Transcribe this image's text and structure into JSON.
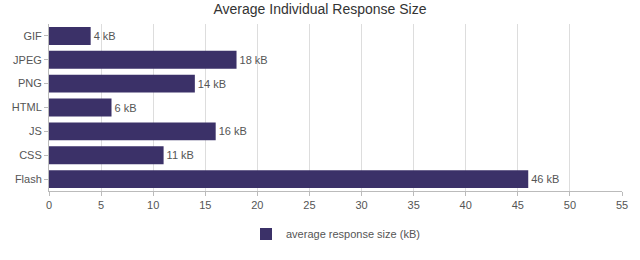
{
  "chart_data": {
    "type": "bar",
    "title": "Average Individual Response Size",
    "orientation": "horizontal",
    "categories": [
      "GIF",
      "JPEG",
      "PNG",
      "HTML",
      "JS",
      "CSS",
      "Flash"
    ],
    "series": [
      {
        "name": "average response size (kB)",
        "color": "#3b3168",
        "values": [
          4,
          18,
          14,
          6,
          16,
          11,
          46
        ],
        "value_labels": [
          "4 kB",
          "18 kB",
          "14 kB",
          "6 kB",
          "16 kB",
          "11 kB",
          "46 kB"
        ]
      }
    ],
    "xlim": [
      0,
      55
    ],
    "xticks": [
      0,
      5,
      10,
      15,
      20,
      25,
      30,
      35,
      40,
      45,
      50,
      55
    ],
    "grid": true,
    "legend": "bottom",
    "data_labels": true
  }
}
